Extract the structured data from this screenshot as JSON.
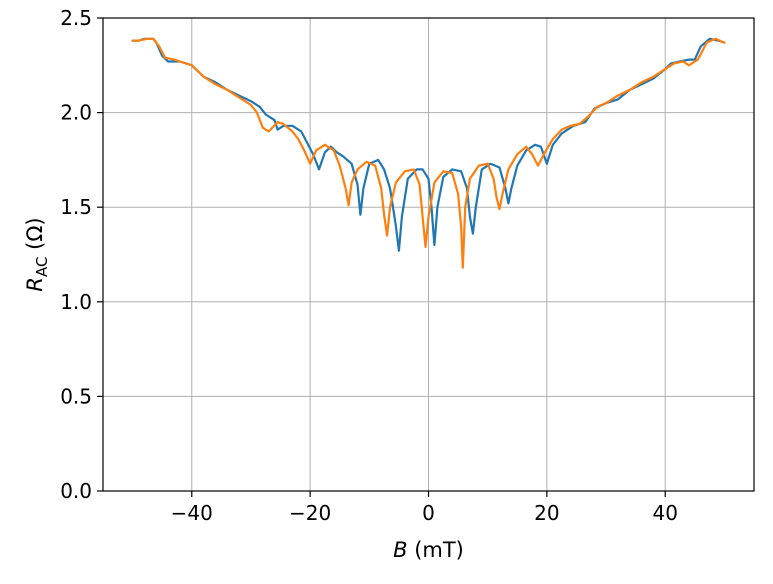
{
  "chart_data": {
    "type": "line",
    "title": "",
    "xlabel": {
      "var": "B",
      "unit": " (mT)"
    },
    "ylabel": {
      "var": "R",
      "sub": "AC",
      "unit": " (Ω)"
    },
    "xlim": [
      -55,
      55
    ],
    "ylim": [
      0,
      2.5
    ],
    "xticks": [
      -40,
      -20,
      0,
      20,
      40
    ],
    "xtick_labels": [
      "−40",
      "−20",
      "0",
      "20",
      "40"
    ],
    "yticks": [
      0,
      0.5,
      1,
      1.5,
      2,
      2.5
    ],
    "ytick_labels": [
      "0.0",
      "0.5",
      "1.0",
      "1.5",
      "2.0",
      "2.5"
    ],
    "grid": true,
    "series": [
      {
        "color": "#1f77b4",
        "points": [
          [
            -50,
            2.38
          ],
          [
            -49,
            2.38
          ],
          [
            -48,
            2.39
          ],
          [
            -46.5,
            2.39
          ],
          [
            -46,
            2.37
          ],
          [
            -45,
            2.3
          ],
          [
            -44,
            2.27
          ],
          [
            -43,
            2.27
          ],
          [
            -42,
            2.27
          ],
          [
            -40,
            2.25
          ],
          [
            -38,
            2.19
          ],
          [
            -36,
            2.16
          ],
          [
            -34,
            2.12
          ],
          [
            -32,
            2.09
          ],
          [
            -30,
            2.06
          ],
          [
            -28.5,
            2.03
          ],
          [
            -27.5,
            1.99
          ],
          [
            -26,
            1.96
          ],
          [
            -25.5,
            1.91
          ],
          [
            -24.5,
            1.93
          ],
          [
            -23,
            1.93
          ],
          [
            -21.5,
            1.9
          ],
          [
            -20.5,
            1.84
          ],
          [
            -19.5,
            1.78
          ],
          [
            -18.5,
            1.7
          ],
          [
            -17.5,
            1.79
          ],
          [
            -16.5,
            1.82
          ],
          [
            -15.5,
            1.79
          ],
          [
            -14.5,
            1.77
          ],
          [
            -13,
            1.73
          ],
          [
            -12,
            1.62
          ],
          [
            -11.5,
            1.46
          ],
          [
            -11,
            1.6
          ],
          [
            -10,
            1.73
          ],
          [
            -8.5,
            1.75
          ],
          [
            -7.5,
            1.7
          ],
          [
            -6.5,
            1.6
          ],
          [
            -6,
            1.5
          ],
          [
            -5.5,
            1.4
          ],
          [
            -5,
            1.27
          ],
          [
            -4.5,
            1.45
          ],
          [
            -3.5,
            1.65
          ],
          [
            -2,
            1.7
          ],
          [
            -1,
            1.7
          ],
          [
            0,
            1.65
          ],
          [
            0.5,
            1.5
          ],
          [
            1,
            1.3
          ],
          [
            1.5,
            1.5
          ],
          [
            2.5,
            1.66
          ],
          [
            4,
            1.7
          ],
          [
            5.5,
            1.69
          ],
          [
            6.5,
            1.6
          ],
          [
            7,
            1.45
          ],
          [
            7.5,
            1.36
          ],
          [
            8,
            1.5
          ],
          [
            9,
            1.7
          ],
          [
            10.5,
            1.73
          ],
          [
            12,
            1.71
          ],
          [
            13,
            1.6
          ],
          [
            13.5,
            1.52
          ],
          [
            14,
            1.6
          ],
          [
            15,
            1.72
          ],
          [
            16.5,
            1.8
          ],
          [
            18,
            1.83
          ],
          [
            19,
            1.82
          ],
          [
            20,
            1.73
          ],
          [
            21,
            1.83
          ],
          [
            22.5,
            1.89
          ],
          [
            24.5,
            1.93
          ],
          [
            26.5,
            1.95
          ],
          [
            28,
            2.02
          ],
          [
            30,
            2.05
          ],
          [
            32,
            2.07
          ],
          [
            34,
            2.12
          ],
          [
            36,
            2.15
          ],
          [
            38,
            2.18
          ],
          [
            40,
            2.23
          ],
          [
            41,
            2.26
          ],
          [
            42.5,
            2.27
          ],
          [
            44,
            2.28
          ],
          [
            45,
            2.28
          ],
          [
            46,
            2.35
          ],
          [
            47.5,
            2.39
          ],
          [
            49,
            2.38
          ],
          [
            50,
            2.37
          ]
        ]
      },
      {
        "color": "#ff7f0e",
        "points": [
          [
            -50,
            2.38
          ],
          [
            -49,
            2.38
          ],
          [
            -47.5,
            2.39
          ],
          [
            -46.5,
            2.39
          ],
          [
            -45.5,
            2.35
          ],
          [
            -44.5,
            2.29
          ],
          [
            -43,
            2.28
          ],
          [
            -42,
            2.27
          ],
          [
            -40,
            2.25
          ],
          [
            -38,
            2.19
          ],
          [
            -36,
            2.15
          ],
          [
            -34,
            2.12
          ],
          [
            -32,
            2.08
          ],
          [
            -30,
            2.04
          ],
          [
            -29,
            2.0
          ],
          [
            -28,
            1.92
          ],
          [
            -27,
            1.9
          ],
          [
            -25.5,
            1.95
          ],
          [
            -24.5,
            1.94
          ],
          [
            -23,
            1.9
          ],
          [
            -22,
            1.86
          ],
          [
            -21,
            1.8
          ],
          [
            -20,
            1.73
          ],
          [
            -19,
            1.8
          ],
          [
            -17.5,
            1.83
          ],
          [
            -16,
            1.8
          ],
          [
            -15,
            1.72
          ],
          [
            -14,
            1.6
          ],
          [
            -13.5,
            1.51
          ],
          [
            -13,
            1.63
          ],
          [
            -12,
            1.7
          ],
          [
            -10.5,
            1.74
          ],
          [
            -9,
            1.72
          ],
          [
            -8,
            1.6
          ],
          [
            -7.5,
            1.46
          ],
          [
            -7,
            1.35
          ],
          [
            -6.5,
            1.5
          ],
          [
            -5.5,
            1.63
          ],
          [
            -4,
            1.69
          ],
          [
            -2.5,
            1.7
          ],
          [
            -1.5,
            1.62
          ],
          [
            -1,
            1.45
          ],
          [
            -0.5,
            1.29
          ],
          [
            0,
            1.45
          ],
          [
            1,
            1.63
          ],
          [
            2.5,
            1.69
          ],
          [
            4,
            1.68
          ],
          [
            5,
            1.57
          ],
          [
            5.5,
            1.4
          ],
          [
            5.8,
            1.18
          ],
          [
            6.2,
            1.5
          ],
          [
            7,
            1.65
          ],
          [
            8.5,
            1.72
          ],
          [
            10,
            1.73
          ],
          [
            11,
            1.65
          ],
          [
            11.5,
            1.55
          ],
          [
            12,
            1.49
          ],
          [
            12.5,
            1.57
          ],
          [
            13.5,
            1.7
          ],
          [
            15,
            1.78
          ],
          [
            16.5,
            1.82
          ],
          [
            17.5,
            1.78
          ],
          [
            18.5,
            1.72
          ],
          [
            19.5,
            1.78
          ],
          [
            21,
            1.86
          ],
          [
            22.5,
            1.91
          ],
          [
            24,
            1.93
          ],
          [
            25.5,
            1.94
          ],
          [
            27,
            1.98
          ],
          [
            28.5,
            2.03
          ],
          [
            30,
            2.05
          ],
          [
            32,
            2.09
          ],
          [
            34,
            2.12
          ],
          [
            36,
            2.16
          ],
          [
            38,
            2.19
          ],
          [
            40,
            2.23
          ],
          [
            41.5,
            2.26
          ],
          [
            43,
            2.27
          ],
          [
            44,
            2.25
          ],
          [
            45.5,
            2.28
          ],
          [
            47,
            2.37
          ],
          [
            48.5,
            2.39
          ],
          [
            50,
            2.37
          ]
        ]
      }
    ]
  }
}
